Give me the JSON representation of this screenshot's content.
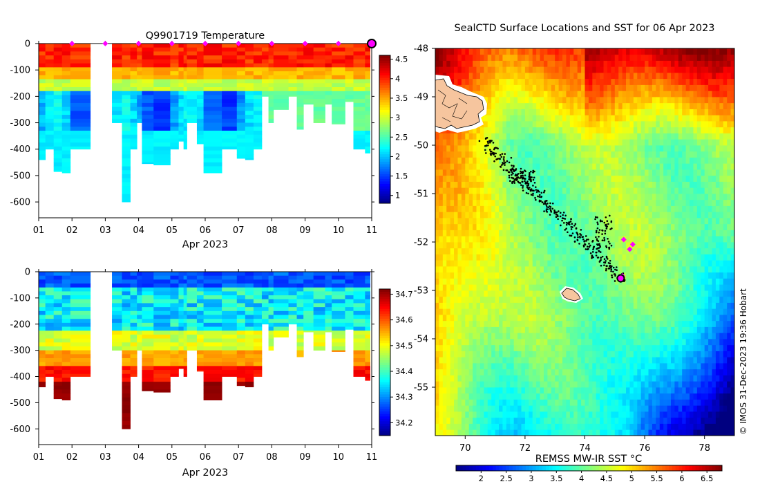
{
  "chart_data": [
    {
      "type": "heatmap",
      "name": "temperature-section",
      "title": "Q9901719  Temperature",
      "xlabel": "Apr 2023",
      "x_ticks": [
        "01",
        "02",
        "03",
        "04",
        "05",
        "06",
        "07",
        "08",
        "09",
        "10",
        "11"
      ],
      "xlim": [
        1,
        11
      ],
      "ylim": [
        -660,
        0
      ],
      "y_ticks": [
        0,
        -100,
        -200,
        -300,
        -400,
        -500,
        -600
      ],
      "y_tick_labels": [
        "0",
        "-100",
        "-200",
        "-300",
        "-400",
        "-500",
        "-600"
      ],
      "colorbar": {
        "min": 0.8,
        "max": 4.6,
        "ticks": [
          1,
          1.5,
          2,
          2.5,
          3,
          3.5,
          4,
          4.5
        ],
        "labels": [
          "1",
          "1.5",
          "2",
          "2.5",
          "3",
          "3.5",
          "4",
          "4.5"
        ]
      },
      "surface_marker_days": [
        2,
        3,
        4,
        5,
        6,
        7,
        8,
        9,
        10
      ],
      "last_marker_day": 11,
      "profiles": [
        {
          "t0": 1.0,
          "t1": 1.2,
          "bottom": 440
        },
        {
          "t0": 1.2,
          "t1": 1.45,
          "bottom": 400
        },
        {
          "t0": 1.45,
          "t1": 1.7,
          "bottom": 485
        },
        {
          "t0": 1.7,
          "t1": 1.95,
          "bottom": 490
        },
        {
          "t0": 1.95,
          "t1": 2.55,
          "bottom": 400
        },
        {
          "t0": 3.2,
          "t1": 3.5,
          "bottom": 300
        },
        {
          "t0": 3.5,
          "t1": 3.75,
          "bottom": 600
        },
        {
          "t0": 3.75,
          "t1": 3.95,
          "bottom": 400
        },
        {
          "t0": 3.95,
          "t1": 4.1,
          "bottom": 300
        },
        {
          "t0": 4.1,
          "t1": 4.45,
          "bottom": 455
        },
        {
          "t0": 4.45,
          "t1": 4.95,
          "bottom": 460
        },
        {
          "t0": 4.95,
          "t1": 5.2,
          "bottom": 400
        },
        {
          "t0": 5.2,
          "t1": 5.35,
          "bottom": 370
        },
        {
          "t0": 5.35,
          "t1": 5.45,
          "bottom": 400
        },
        {
          "t0": 5.45,
          "t1": 5.75,
          "bottom": 300
        },
        {
          "t0": 5.75,
          "t1": 5.95,
          "bottom": 380
        },
        {
          "t0": 5.95,
          "t1": 6.5,
          "bottom": 490
        },
        {
          "t0": 6.5,
          "t1": 6.95,
          "bottom": 400
        },
        {
          "t0": 6.95,
          "t1": 7.2,
          "bottom": 435
        },
        {
          "t0": 7.2,
          "t1": 7.45,
          "bottom": 440
        },
        {
          "t0": 7.45,
          "t1": 7.7,
          "bottom": 400
        },
        {
          "t0": 7.7,
          "t1": 7.9,
          "bottom": 200
        },
        {
          "t0": 7.9,
          "t1": 8.05,
          "bottom": 300
        },
        {
          "t0": 8.05,
          "t1": 8.5,
          "bottom": 250
        },
        {
          "t0": 8.5,
          "t1": 8.75,
          "bottom": 200
        },
        {
          "t0": 8.75,
          "t1": 8.95,
          "bottom": 325
        },
        {
          "t0": 8.95,
          "t1": 9.25,
          "bottom": 230
        },
        {
          "t0": 9.25,
          "t1": 9.6,
          "bottom": 300
        },
        {
          "t0": 9.6,
          "t1": 9.8,
          "bottom": 230
        },
        {
          "t0": 9.8,
          "t1": 10.2,
          "bottom": 305
        },
        {
          "t0": 10.2,
          "t1": 10.45,
          "bottom": 220
        },
        {
          "t0": 10.45,
          "t1": 10.8,
          "bottom": 400
        },
        {
          "t0": 10.8,
          "t1": 10.95,
          "bottom": 415
        }
      ]
    },
    {
      "type": "heatmap",
      "name": "salinity-section",
      "title": "",
      "xlabel": "Apr 2023",
      "x_ticks": [
        "01",
        "02",
        "03",
        "04",
        "05",
        "06",
        "07",
        "08",
        "09",
        "10",
        "11"
      ],
      "xlim": [
        1,
        11
      ],
      "ylim": [
        -660,
        0
      ],
      "y_ticks": [
        0,
        -100,
        -200,
        -300,
        -400,
        -500,
        -600
      ],
      "y_tick_labels": [
        "0",
        "-100",
        "-200",
        "-300",
        "-400",
        "-500",
        "-600"
      ],
      "colorbar": {
        "min": 34.15,
        "max": 34.72,
        "ticks": [
          34.2,
          34.3,
          34.4,
          34.5,
          34.6,
          34.7
        ],
        "labels": [
          "34.2",
          "34.3",
          "34.4",
          "34.5",
          "34.6",
          "34.7"
        ]
      }
    },
    {
      "type": "heatmap",
      "name": "sst-map",
      "title": "SealCTD Surface Locations and SST for 06 Apr 2023",
      "xlim": [
        69,
        79
      ],
      "ylim": [
        -56,
        -48
      ],
      "x_ticks": [
        70,
        72,
        74,
        76,
        78
      ],
      "x_tick_labels": [
        "70",
        "72",
        "74",
        "76",
        "78"
      ],
      "y_ticks": [
        -48,
        -49,
        -50,
        -51,
        -52,
        -53,
        -54,
        -55
      ],
      "y_tick_labels": [
        "-48",
        "-49",
        "-50",
        "-51",
        "-52",
        "-53",
        "-54",
        "-55"
      ],
      "colorbar": {
        "label": "REMSS MW-IR SST °C",
        "min": 1.5,
        "max": 6.8,
        "ticks": [
          2,
          2.5,
          3,
          3.5,
          4,
          4.5,
          5,
          5.5,
          6,
          6.5
        ],
        "labels": [
          "2",
          "2.5",
          "3",
          "3.5",
          "4",
          "4.5",
          "5",
          "5.5",
          "6",
          "6.5"
        ]
      },
      "track_last_position": {
        "lon": 75.2,
        "lat": -52.75
      },
      "daily_positions": [
        {
          "lon": 75.6,
          "lat": -52.05
        },
        {
          "lon": 75.5,
          "lat": -52.15
        },
        {
          "lon": 75.3,
          "lat": -51.95
        },
        {
          "lon": 75.25,
          "lat": -52.7
        }
      ]
    }
  ],
  "credit": "© IMOS 31-Dec-2023 19:36 Hobart"
}
